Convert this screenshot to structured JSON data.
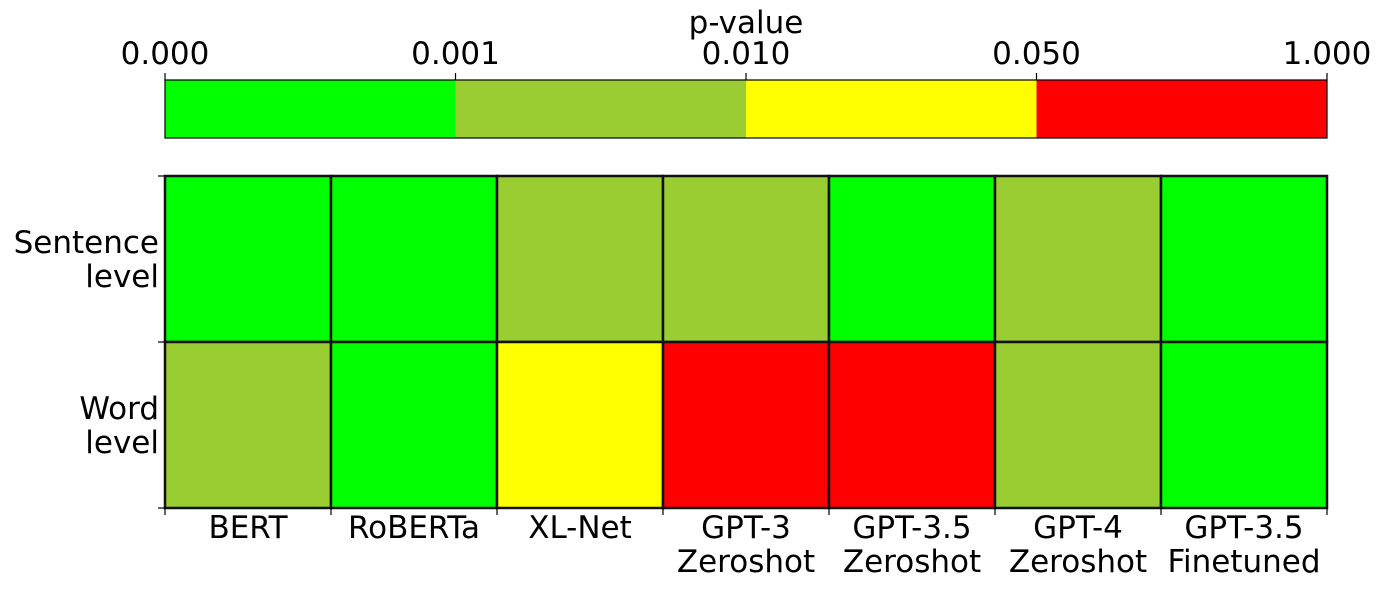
{
  "chart_data": {
    "type": "heatmap",
    "colorbar": {
      "label": "p-value",
      "ticks": [
        "0.000",
        "0.001",
        "0.010",
        "0.050",
        "1.000"
      ],
      "bands": [
        {
          "from": 0.0,
          "to": 0.001,
          "color": "#00ff00"
        },
        {
          "from": 0.001,
          "to": 0.01,
          "color": "#9acd32"
        },
        {
          "from": 0.01,
          "to": 0.05,
          "color": "#ffff00"
        },
        {
          "from": 0.05,
          "to": 1.0,
          "color": "#ff0000"
        }
      ]
    },
    "columns": [
      [
        "BERT"
      ],
      [
        "RoBERTa"
      ],
      [
        "XL-Net"
      ],
      [
        "GPT-3",
        "Zeroshot"
      ],
      [
        "GPT-3.5",
        "Zeroshot"
      ],
      [
        "GPT-4",
        "Zeroshot"
      ],
      [
        "GPT-3.5",
        "Finetuned"
      ]
    ],
    "rows": [
      [
        "Sentence",
        "level"
      ],
      [
        "Word",
        "level"
      ]
    ],
    "cell_band_index": [
      [
        0,
        0,
        1,
        1,
        0,
        1,
        0
      ],
      [
        1,
        0,
        2,
        3,
        3,
        1,
        0
      ]
    ]
  }
}
